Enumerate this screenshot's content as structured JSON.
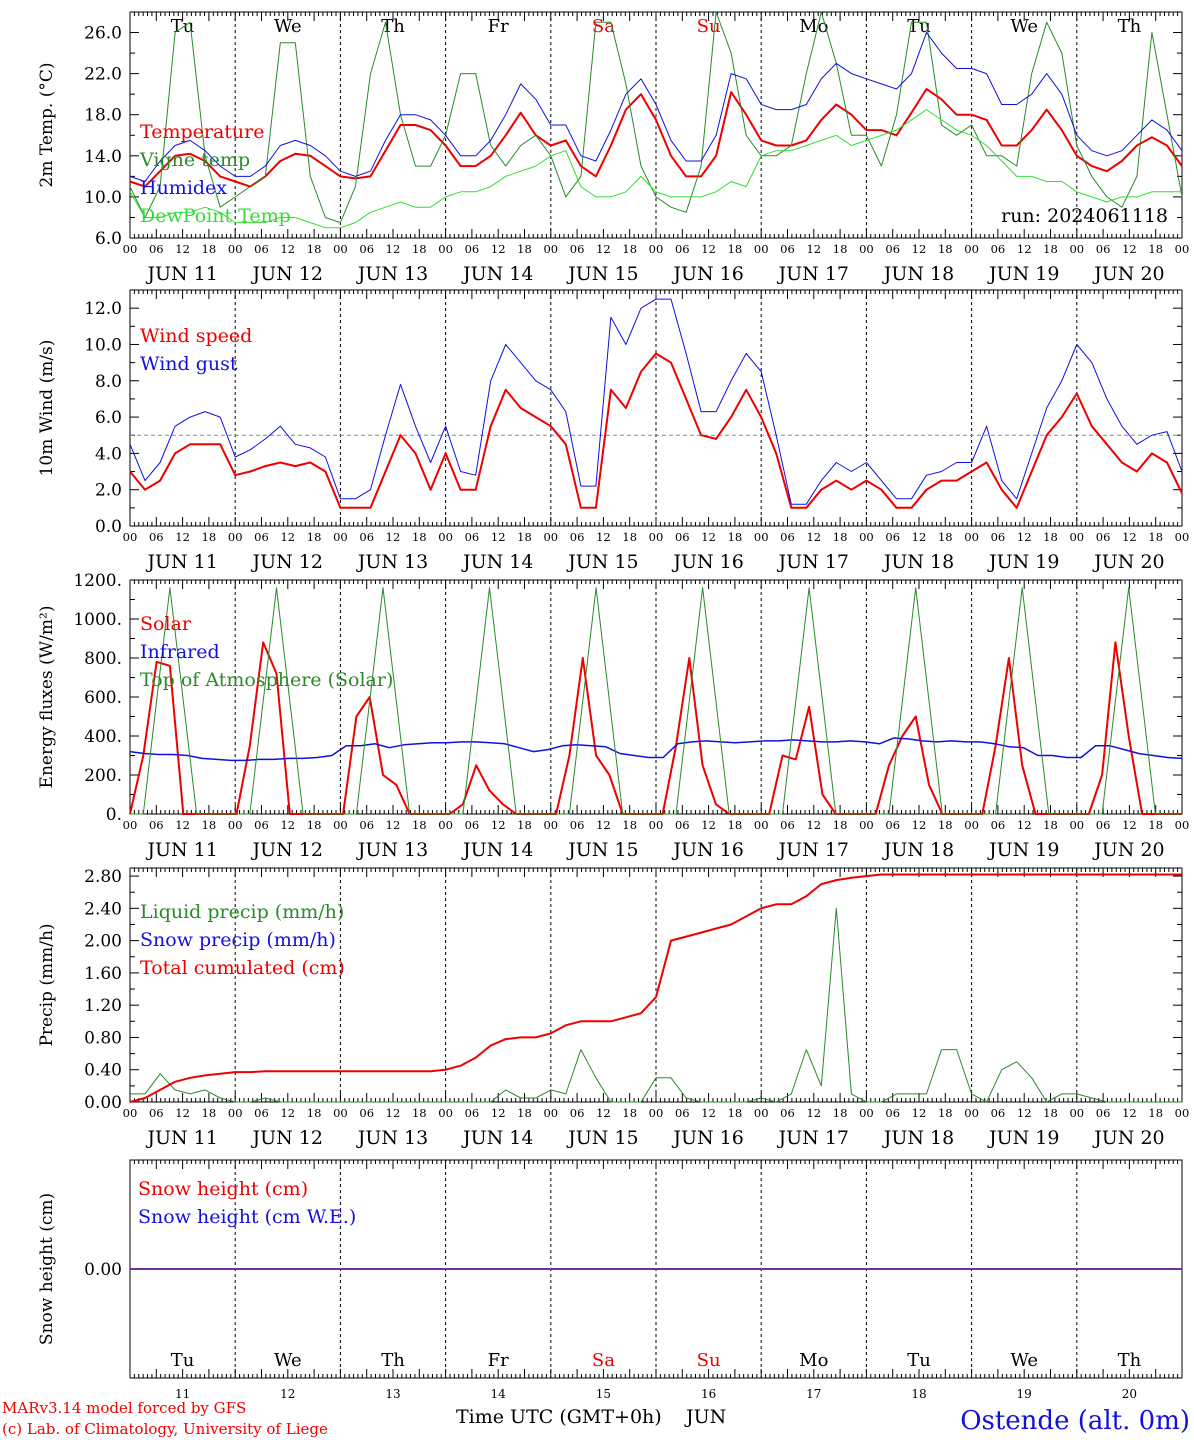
{
  "colors": {
    "red": "#ee0000",
    "blue": "#1010e0",
    "green": "#2a8a2a",
    "lightgreen": "#33dd33",
    "purple": "#7030a0"
  },
  "days": [
    {
      "name": "Tu",
      "date": "JUN 11",
      "num": "11",
      "weekend": false
    },
    {
      "name": "We",
      "date": "JUN 12",
      "num": "12",
      "weekend": false
    },
    {
      "name": "Th",
      "date": "JUN 13",
      "num": "13",
      "weekend": false
    },
    {
      "name": "Fr",
      "date": "JUN 14",
      "num": "14",
      "weekend": false
    },
    {
      "name": "Sa",
      "date": "JUN 15",
      "num": "15",
      "weekend": true
    },
    {
      "name": "Su",
      "date": "JUN 16",
      "num": "16",
      "weekend": true
    },
    {
      "name": "Mo",
      "date": "JUN 17",
      "num": "17",
      "weekend": false
    },
    {
      "name": "Tu",
      "date": "JUN 18",
      "num": "18",
      "weekend": false
    },
    {
      "name": "We",
      "date": "JUN 19",
      "num": "19",
      "weekend": false
    },
    {
      "name": "Th",
      "date": "JUN 20",
      "num": "20",
      "weekend": false
    }
  ],
  "hour_labels": [
    "00",
    "06",
    "12",
    "18"
  ],
  "footer": {
    "model_line1": "MARv3.14 model forced by GFS",
    "model_line2": "(c) Lab. of Climatology, University of Liege",
    "xlabel": "Time UTC (GMT+0h)",
    "month": "JUN",
    "station": "Ostende (alt. 0m)"
  },
  "chart_data": [
    {
      "type": "line",
      "ylabel": "2m Temp. (°C)",
      "ylim": [
        6,
        28
      ],
      "yticks": [
        "6.0",
        "10.0",
        "14.0",
        "18.0",
        "22.0",
        "26.0"
      ],
      "x_unit": "hours since JUN 11 00 UTC (3-hourly)",
      "annotation": "run: 2024061118",
      "series": [
        {
          "name": "Temperature",
          "color": "red",
          "values": [
            11.5,
            11,
            12.5,
            14,
            14.2,
            13.5,
            12,
            11.5,
            11,
            12,
            13.5,
            14.2,
            14,
            13,
            12,
            11.8,
            12,
            14.5,
            17,
            17,
            16.5,
            15,
            13,
            13,
            14,
            16,
            18.2,
            16,
            15,
            15.5,
            13,
            12,
            15,
            18.5,
            20,
            17.5,
            14,
            12,
            12,
            14,
            20.2,
            18,
            15.5,
            15,
            15,
            15.5,
            17.5,
            19,
            18,
            16.5,
            16.5,
            16,
            18.2,
            20.5,
            19.5,
            18,
            18,
            17.5,
            15,
            15,
            16.5,
            18.5,
            16.5,
            14,
            13,
            12.5,
            13.5,
            15,
            15.8,
            15,
            13
          ]
        },
        {
          "name": "Vigne temp",
          "color": "green",
          "values": [
            11,
            8,
            11,
            26,
            27,
            14,
            9,
            10,
            11,
            12,
            25,
            25,
            12,
            8,
            7.5,
            11,
            22,
            27,
            18,
            13,
            13,
            16,
            22,
            22,
            15,
            13,
            15,
            16,
            14,
            10,
            12,
            27,
            27,
            21,
            13,
            10,
            9,
            8.5,
            13,
            28,
            24,
            16,
            14,
            14,
            15,
            22,
            28,
            23,
            16,
            16,
            13,
            18,
            27,
            27,
            17,
            16,
            17,
            14,
            14,
            13,
            22,
            27,
            24,
            15,
            12,
            10,
            9,
            12,
            26,
            18,
            10
          ]
        },
        {
          "name": "Humidex",
          "color": "blue",
          "values": [
            12,
            11.5,
            13.5,
            15,
            15.5,
            14.5,
            13,
            12,
            12,
            13,
            15,
            15.5,
            15,
            14,
            12.5,
            12,
            12.5,
            15.5,
            18,
            18,
            17.5,
            16,
            14,
            14,
            15.5,
            18,
            21,
            19.5,
            17,
            17,
            14,
            13.5,
            16.5,
            20,
            21.5,
            19,
            15.5,
            13.5,
            13.5,
            16,
            22,
            21.5,
            19,
            18.5,
            18.5,
            19,
            21.5,
            23,
            22,
            21.5,
            21,
            20.5,
            22,
            26,
            24,
            22.5,
            22.5,
            22,
            19,
            19,
            20,
            22,
            20,
            16,
            14.5,
            14,
            14.5,
            16,
            17.5,
            16.5,
            14.5
          ]
        },
        {
          "name": "DewPoint Temp",
          "color": "lightgreen",
          "values": [
            10.5,
            8,
            8,
            8.5,
            8.5,
            9,
            8.5,
            7.5,
            7.5,
            7.5,
            8,
            8,
            7.5,
            7,
            7,
            7.5,
            8.5,
            9,
            9.5,
            9,
            9,
            10,
            10.5,
            10.5,
            11,
            12,
            12.5,
            13,
            14,
            14.5,
            11,
            10,
            10,
            10.5,
            12,
            10.5,
            10,
            10,
            10,
            10.5,
            11.5,
            11,
            14,
            14.5,
            14.5,
            15,
            15.5,
            16,
            15,
            15.5,
            16,
            16.5,
            17.5,
            18.5,
            17.5,
            16.5,
            16,
            15,
            13.5,
            12,
            12,
            11.5,
            11.5,
            10.5,
            10,
            9.5,
            10,
            10,
            10.5,
            10.5,
            10.5
          ]
        }
      ]
    },
    {
      "type": "line",
      "ylabel": "10m Wind (m/s)",
      "ylim": [
        0,
        13
      ],
      "yticks": [
        "0.0",
        "2.0",
        "4.0",
        "6.0",
        "8.0",
        "10.0",
        "12.0"
      ],
      "reference_line": 5.0,
      "series": [
        {
          "name": "Wind speed",
          "color": "red",
          "values": [
            3,
            2,
            2.5,
            4,
            4.5,
            4.5,
            4.5,
            2.8,
            3,
            3.3,
            3.5,
            3.3,
            3.5,
            3,
            1,
            1,
            1,
            3,
            5,
            4,
            2,
            4,
            2,
            2,
            5.5,
            7.5,
            6.5,
            6,
            5.5,
            4.5,
            1,
            1,
            7.5,
            6.5,
            8.5,
            9.5,
            9,
            7,
            5,
            4.8,
            6,
            7.5,
            6,
            4,
            1,
            1,
            2,
            2.5,
            2,
            2.5,
            2,
            1,
            1,
            2,
            2.5,
            2.5,
            3,
            3.5,
            2,
            1,
            3,
            5,
            6,
            7.3,
            5.5,
            4.5,
            3.5,
            3,
            4,
            3.5,
            1.8
          ]
        },
        {
          "name": "Wind gust",
          "color": "blue",
          "values": [
            4.5,
            2.5,
            3.5,
            5.5,
            6,
            6.3,
            6,
            3.8,
            4.2,
            4.8,
            5.5,
            4.5,
            4.3,
            3.8,
            1.5,
            1.5,
            2,
            5,
            7.8,
            5.5,
            3.5,
            5.5,
            3,
            2.8,
            8,
            10,
            9,
            8,
            7.5,
            6.3,
            2.2,
            2.2,
            11.5,
            10,
            12,
            12.5,
            12.5,
            9.5,
            6.3,
            6.3,
            8,
            9.5,
            8.5,
            5,
            1.2,
            1.2,
            2.5,
            3.5,
            3,
            3.5,
            2.5,
            1.5,
            1.5,
            2.8,
            3,
            3.5,
            3.5,
            5.5,
            2.5,
            1.5,
            4,
            6.5,
            8,
            10,
            9,
            7,
            5.5,
            4.5,
            5,
            5.2,
            3
          ]
        }
      ]
    },
    {
      "type": "line",
      "ylabel": "Energy fluxes (W/m²)",
      "ylim": [
        0,
        1200
      ],
      "yticks": [
        "0.",
        "200.",
        "400.",
        "600.",
        "800.",
        "1000.",
        "1200."
      ],
      "series": [
        {
          "name": "Solar",
          "color": "red",
          "values": [
            0,
            300,
            780,
            760,
            0,
            0,
            0,
            0,
            0,
            350,
            880,
            720,
            0,
            0,
            0,
            0,
            0,
            500,
            600,
            200,
            150,
            0,
            0,
            0,
            0,
            50,
            250,
            120,
            50,
            0,
            0,
            0,
            0,
            300,
            800,
            300,
            200,
            0,
            0,
            0,
            0,
            350,
            800,
            250,
            50,
            0,
            0,
            0,
            0,
            300,
            280,
            550,
            100,
            0,
            0,
            0,
            0,
            250,
            400,
            500,
            150,
            0,
            0,
            0,
            0,
            350,
            800,
            250,
            0,
            0,
            0,
            0,
            0,
            200,
            880,
            400,
            0,
            0,
            0,
            0
          ]
        },
        {
          "name": "Infrared",
          "color": "blue",
          "values": [
            320,
            310,
            305,
            305,
            300,
            285,
            280,
            275,
            275,
            280,
            280,
            285,
            285,
            290,
            300,
            350,
            350,
            360,
            340,
            355,
            360,
            365,
            365,
            370,
            370,
            365,
            360,
            340,
            320,
            330,
            350,
            355,
            350,
            345,
            310,
            300,
            290,
            290,
            360,
            370,
            375,
            370,
            365,
            370,
            375,
            375,
            380,
            375,
            370,
            370,
            375,
            370,
            360,
            390,
            385,
            375,
            370,
            375,
            370,
            370,
            360,
            345,
            340,
            300,
            300,
            290,
            290,
            350,
            350,
            330,
            310,
            300,
            290,
            285
          ]
        },
        {
          "name": "Top of Atmosphere (Solar)",
          "color": "green",
          "values": [
            0,
            0,
            580,
            1160,
            580,
            0,
            0,
            0,
            0,
            0,
            580,
            1160,
            580,
            0,
            0,
            0,
            0,
            0,
            580,
            1160,
            580,
            0,
            0,
            0,
            0,
            0,
            580,
            1160,
            580,
            0,
            0,
            0,
            0,
            0,
            580,
            1160,
            580,
            0,
            0,
            0,
            0,
            0,
            580,
            1160,
            580,
            0,
            0,
            0,
            0,
            0,
            580,
            1160,
            580,
            0,
            0,
            0,
            0,
            0,
            580,
            1160,
            580,
            0,
            0,
            0,
            0,
            0,
            580,
            1160,
            580,
            0,
            0,
            0,
            0,
            0,
            580,
            1160,
            580,
            0,
            0,
            0
          ]
        }
      ]
    },
    {
      "type": "line",
      "ylabel": "Precip (mm/h)",
      "ylim": [
        0,
        2.9
      ],
      "yticks": [
        "0.00",
        "0.40",
        "0.80",
        "1.20",
        "1.60",
        "2.00",
        "2.40",
        "2.80"
      ],
      "series": [
        {
          "name": "Liquid precip (mm/h)",
          "color": "green",
          "values": [
            0.1,
            0.1,
            0.35,
            0.15,
            0.1,
            0.15,
            0.05,
            0,
            0,
            0.05,
            0,
            0,
            0,
            0,
            0,
            0,
            0,
            0,
            0,
            0,
            0,
            0,
            0,
            0,
            0,
            0.15,
            0.05,
            0.05,
            0.15,
            0.1,
            0.65,
            0.3,
            0,
            0,
            0,
            0.3,
            0.3,
            0.05,
            0,
            0,
            0,
            0,
            0.05,
            0,
            0.1,
            0.65,
            0.2,
            2.4,
            0.1,
            0,
            0,
            0.1,
            0.1,
            0.1,
            0.65,
            0.65,
            0.1,
            0,
            0.4,
            0.5,
            0.3,
            0,
            0.1,
            0.1,
            0.05,
            0,
            0,
            0,
            0,
            0,
            0
          ]
        },
        {
          "name": "Total cumulated (cm)",
          "color": "red",
          "values": [
            0,
            0.05,
            0.15,
            0.25,
            0.3,
            0.33,
            0.35,
            0.37,
            0.37,
            0.38,
            0.38,
            0.38,
            0.38,
            0.38,
            0.38,
            0.38,
            0.38,
            0.38,
            0.38,
            0.38,
            0.38,
            0.4,
            0.45,
            0.55,
            0.7,
            0.78,
            0.8,
            0.8,
            0.85,
            0.95,
            1,
            1,
            1,
            1.05,
            1.1,
            1.3,
            2,
            2.05,
            2.1,
            2.15,
            2.2,
            2.3,
            2.4,
            2.45,
            2.45,
            2.55,
            2.7,
            2.75,
            2.78,
            2.8,
            2.82,
            2.82,
            2.82,
            2.82,
            2.82,
            2.82,
            2.82,
            2.82,
            2.82,
            2.82,
            2.82,
            2.82,
            2.82,
            2.82,
            2.82,
            2.82,
            2.82,
            2.82,
            2.82,
            2.82,
            2.82
          ]
        }
      ]
    },
    {
      "type": "line",
      "ylabel": "Snow height (cm)",
      "ylim": [
        -1,
        1
      ],
      "yticks": [
        "0.00"
      ],
      "series": [
        {
          "name": "Snow height (cm)",
          "color": "red",
          "values": [
            0,
            0
          ]
        },
        {
          "name": "Snow height (cm W.E.)",
          "color": "blue",
          "values": [
            0,
            0
          ]
        }
      ]
    }
  ]
}
